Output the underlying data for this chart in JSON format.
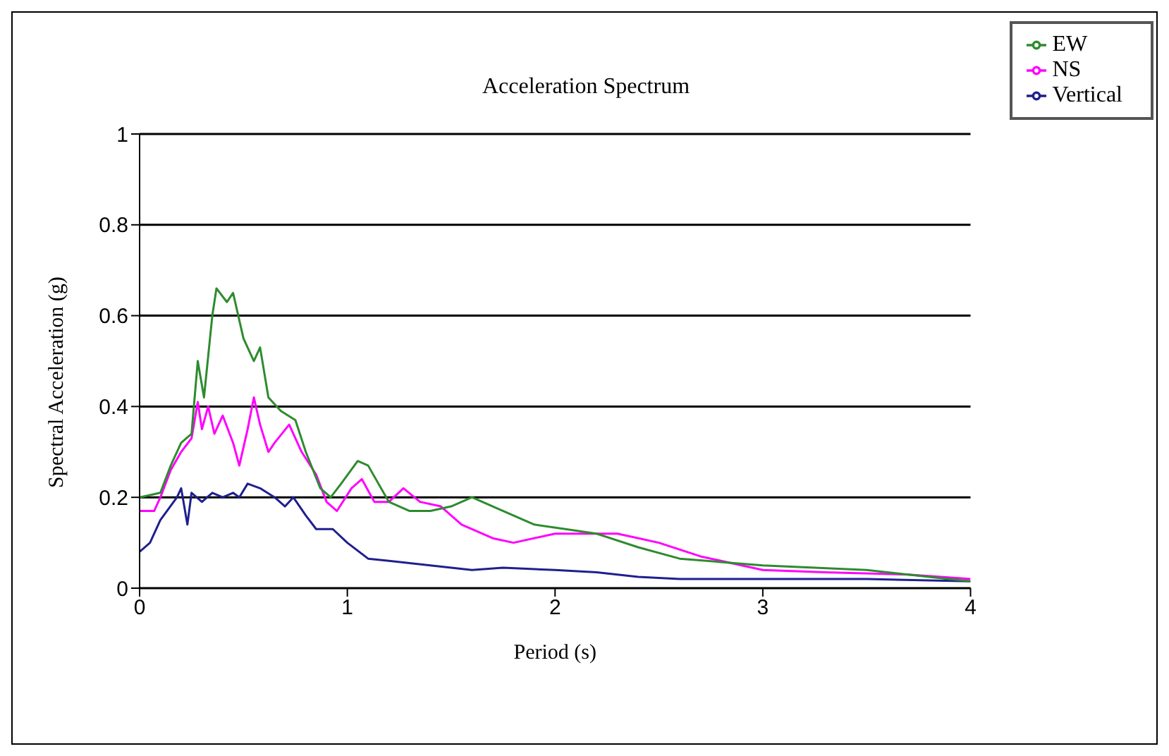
{
  "chart_data": {
    "type": "line",
    "title": "Acceleration Spectrum",
    "xlabel": "Period (s)",
    "ylabel": "Spectral Acceleration (g)",
    "xlim": [
      0,
      4
    ],
    "xticks": [
      0,
      1,
      2,
      3,
      4
    ],
    "ylim": [
      0,
      1
    ],
    "yticks": [
      0,
      0.2,
      0.4,
      0.6,
      0.8,
      1
    ],
    "grid": "y",
    "legend": "top right",
    "marker": "none",
    "line_style": "solid",
    "series": [
      {
        "name": "Vertical",
        "color": "#1f1f8f",
        "x": [
          0,
          0.05,
          0.1,
          0.18,
          0.2,
          0.23,
          0.25,
          0.3,
          0.35,
          0.4,
          0.45,
          0.48,
          0.52,
          0.58,
          0.65,
          0.7,
          0.74,
          0.8,
          0.85,
          0.93,
          1.0,
          1.1,
          1.2,
          1.4,
          1.6,
          1.75,
          2.0,
          2.2,
          2.4,
          2.6,
          3.0,
          3.5,
          4.0
        ],
        "values": [
          0.08,
          0.1,
          0.15,
          0.2,
          0.22,
          0.14,
          0.21,
          0.19,
          0.21,
          0.2,
          0.21,
          0.2,
          0.23,
          0.22,
          0.2,
          0.18,
          0.2,
          0.16,
          0.13,
          0.13,
          0.1,
          0.065,
          0.06,
          0.05,
          0.04,
          0.045,
          0.04,
          0.035,
          0.025,
          0.02,
          0.02,
          0.02,
          0.015
        ]
      },
      {
        "name": "NS",
        "color": "#ff00ff",
        "x": [
          0,
          0.07,
          0.1,
          0.15,
          0.2,
          0.25,
          0.28,
          0.3,
          0.33,
          0.36,
          0.4,
          0.45,
          0.48,
          0.52,
          0.55,
          0.58,
          0.62,
          0.65,
          0.72,
          0.78,
          0.85,
          0.9,
          0.95,
          1.02,
          1.07,
          1.13,
          1.2,
          1.27,
          1.35,
          1.45,
          1.55,
          1.7,
          1.8,
          2.0,
          2.3,
          2.5,
          2.7,
          3.0,
          3.3,
          3.7,
          4.0
        ],
        "values": [
          0.17,
          0.17,
          0.2,
          0.26,
          0.3,
          0.33,
          0.41,
          0.35,
          0.4,
          0.34,
          0.38,
          0.32,
          0.27,
          0.35,
          0.42,
          0.36,
          0.3,
          0.32,
          0.36,
          0.3,
          0.25,
          0.19,
          0.17,
          0.22,
          0.24,
          0.19,
          0.19,
          0.22,
          0.19,
          0.18,
          0.14,
          0.11,
          0.1,
          0.12,
          0.12,
          0.1,
          0.07,
          0.04,
          0.035,
          0.03,
          0.02
        ]
      },
      {
        "name": "EW",
        "color": "#2e8b2e",
        "x": [
          0,
          0.1,
          0.15,
          0.2,
          0.25,
          0.28,
          0.31,
          0.35,
          0.37,
          0.42,
          0.45,
          0.5,
          0.55,
          0.58,
          0.62,
          0.68,
          0.75,
          0.8,
          0.87,
          0.92,
          0.97,
          1.05,
          1.1,
          1.2,
          1.3,
          1.4,
          1.5,
          1.6,
          1.7,
          1.9,
          2.05,
          2.2,
          2.4,
          2.6,
          3.0,
          3.5,
          3.8,
          4.0
        ],
        "values": [
          0.2,
          0.21,
          0.27,
          0.32,
          0.34,
          0.5,
          0.42,
          0.6,
          0.66,
          0.63,
          0.65,
          0.55,
          0.5,
          0.53,
          0.42,
          0.39,
          0.37,
          0.3,
          0.22,
          0.2,
          0.23,
          0.28,
          0.27,
          0.19,
          0.17,
          0.17,
          0.18,
          0.2,
          0.18,
          0.14,
          0.13,
          0.12,
          0.09,
          0.065,
          0.05,
          0.04,
          0.025,
          0.015
        ]
      }
    ]
  }
}
